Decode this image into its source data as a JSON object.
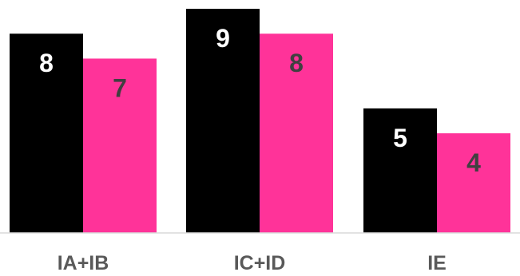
{
  "chart_data": {
    "type": "bar",
    "title": "",
    "xlabel": "",
    "ylabel": "",
    "categories": [
      "IA+IB",
      "IC+ID",
      "IE"
    ],
    "series": [
      {
        "values": [
          8,
          9,
          5
        ],
        "color": "#000000",
        "label_color": "#ffffff"
      },
      {
        "values": [
          7,
          8,
          4
        ],
        "color": "#ff3399",
        "label_color": "#404040"
      }
    ],
    "ylim": [
      0,
      9
    ],
    "grid": false,
    "legend": "none",
    "data_labels": true
  }
}
